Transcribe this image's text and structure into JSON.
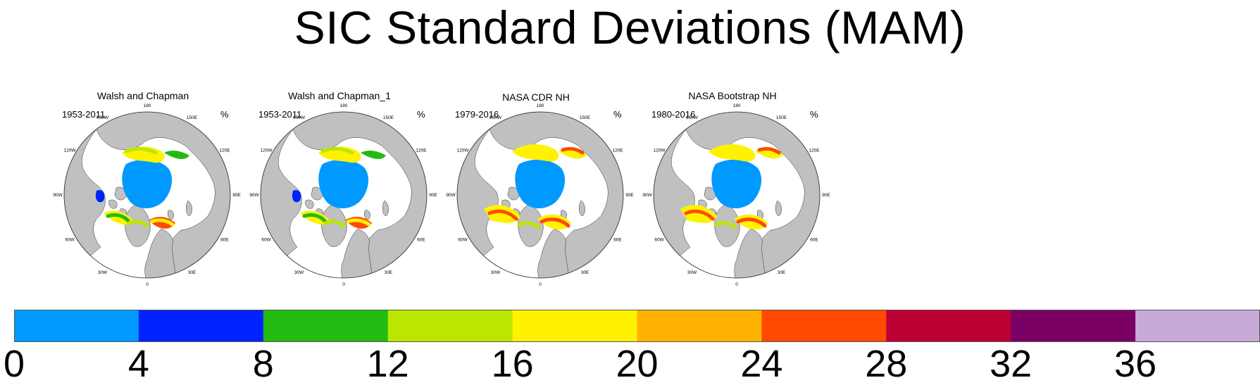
{
  "title": "SIC Standard Deviations (MAM)",
  "longitude_labels": [
    "180",
    "150E",
    "120E",
    "90E",
    "60E",
    "30E",
    "0",
    "30W",
    "60W",
    "90W",
    "120W",
    "150W"
  ],
  "panels": [
    {
      "title": "Walsh and Chapman",
      "period": "1953-2011",
      "unit": "%"
    },
    {
      "title": "Walsh and Chapman_1",
      "period": "1953-2011",
      "unit": "%"
    },
    {
      "title": "NASA CDR NH",
      "period": "1979-2016",
      "unit": "%"
    },
    {
      "title": "NASA Bootstrap NH",
      "period": "1980-2016",
      "unit": "%"
    }
  ],
  "colorbar": {
    "colors": [
      "#0099ff",
      "#0022ff",
      "#22bb11",
      "#bbe600",
      "#fff200",
      "#ffb300",
      "#ff4a00",
      "#bb0033",
      "#7a0066",
      "#c8aad6"
    ],
    "labels": [
      "0",
      "4",
      "8",
      "12",
      "16",
      "20",
      "24",
      "28",
      "32",
      "36"
    ]
  },
  "map_colors": {
    "land": "#c0c0c0",
    "ocean": "#ffffff"
  }
}
